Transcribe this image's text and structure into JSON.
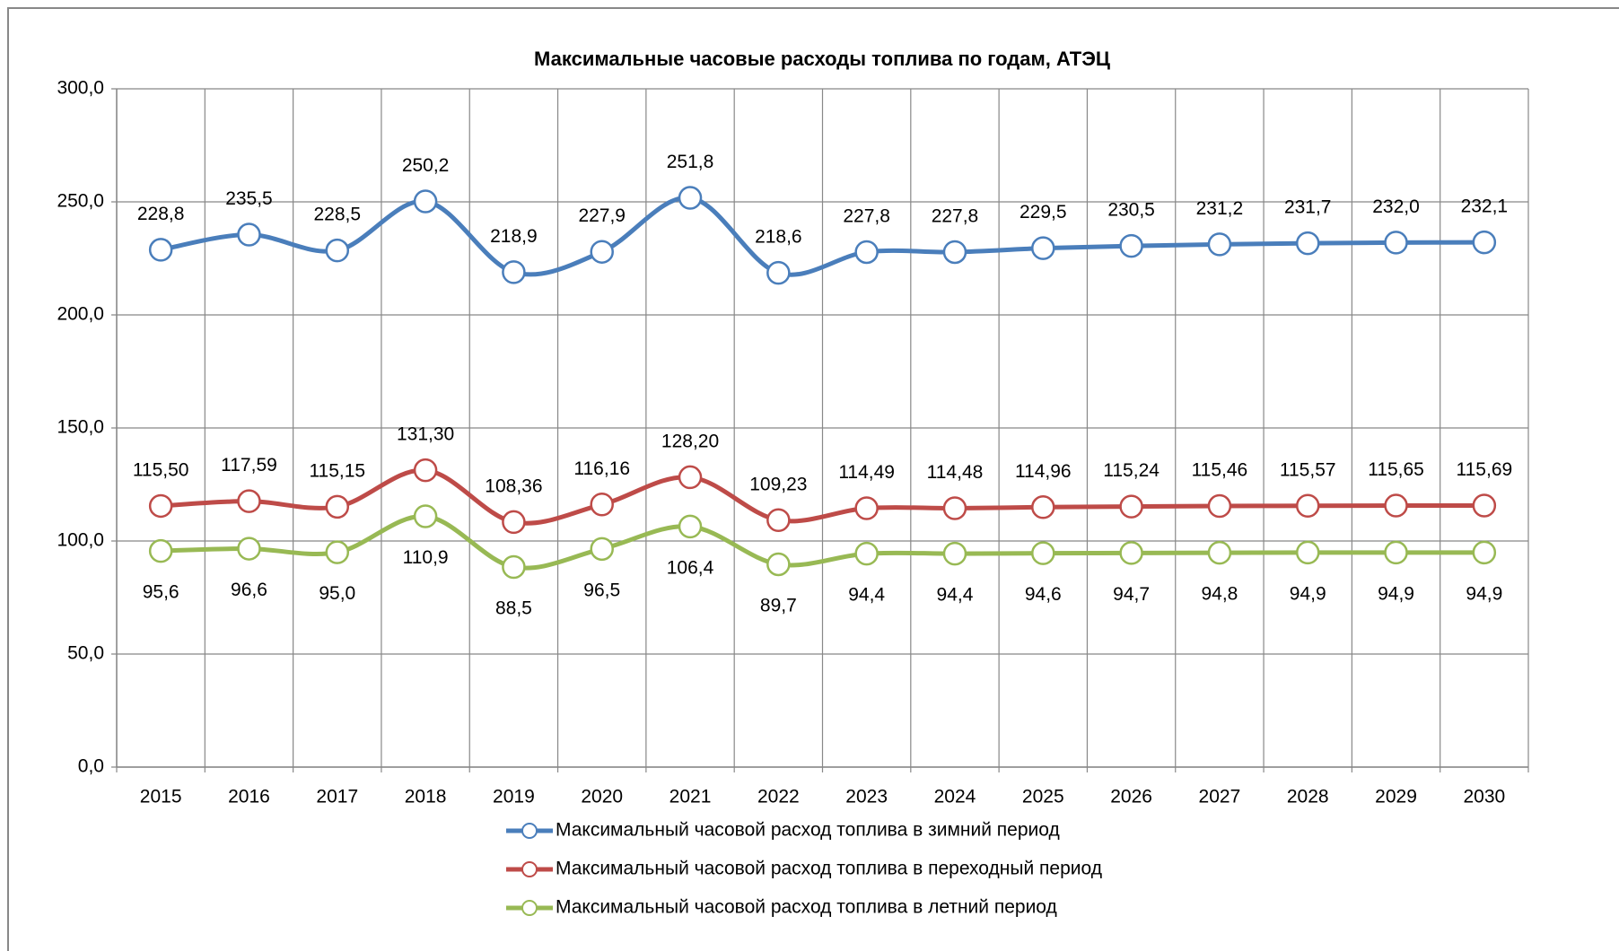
{
  "chart_data": {
    "type": "line",
    "title": "Максимальные часовые расходы топлива по годам, АТЭЦ",
    "categories": [
      "2015",
      "2016",
      "2017",
      "2018",
      "2019",
      "2020",
      "2021",
      "2022",
      "2023",
      "2024",
      "2025",
      "2026",
      "2027",
      "2028",
      "2029",
      "2030"
    ],
    "ylim": [
      0,
      300
    ],
    "yticks": [
      {
        "value": 0,
        "label": "0,0"
      },
      {
        "value": 50,
        "label": "50,0"
      },
      {
        "value": 100,
        "label": "100,0"
      },
      {
        "value": 150,
        "label": "150,0"
      },
      {
        "value": 200,
        "label": "200,0"
      },
      {
        "value": 250,
        "label": "250,0"
      },
      {
        "value": 300,
        "label": "300,0"
      }
    ],
    "grid": true,
    "legend": "bottom",
    "series": [
      {
        "name": "Максимальный часовой расход топлива в зимний период",
        "color": "#4a7ebb",
        "values": [
          228.8,
          235.5,
          228.5,
          250.2,
          218.9,
          227.9,
          251.8,
          218.6,
          227.8,
          227.8,
          229.5,
          230.5,
          231.2,
          231.7,
          232.0,
          232.1
        ],
        "value_labels": [
          "228,8",
          "235,5",
          "228,5",
          "250,2",
          "218,9",
          "227,9",
          "251,8",
          "218,6",
          "227,8",
          "227,8",
          "229,5",
          "230,5",
          "231,2",
          "231,7",
          "232,0",
          "232,1"
        ]
      },
      {
        "name": "Максимальный часовой расход топлива в переходный период",
        "color": "#be4b48",
        "values": [
          115.5,
          117.59,
          115.15,
          131.3,
          108.36,
          116.16,
          128.2,
          109.23,
          114.49,
          114.48,
          114.96,
          115.24,
          115.46,
          115.57,
          115.65,
          115.69
        ],
        "value_labels": [
          "115,50",
          "117,59",
          "115,15",
          "131,30",
          "108,36",
          "116,16",
          "128,20",
          "109,23",
          "114,49",
          "114,48",
          "114,96",
          "115,24",
          "115,46",
          "115,57",
          "115,65",
          "115,69"
        ]
      },
      {
        "name": "Максимальный часовой расход топлива в летний период",
        "color": "#98b954",
        "values": [
          95.6,
          96.6,
          95.0,
          110.9,
          88.5,
          96.5,
          106.4,
          89.7,
          94.4,
          94.4,
          94.6,
          94.7,
          94.8,
          94.9,
          94.9,
          94.9
        ],
        "value_labels": [
          "95,6",
          "96,6",
          "95,0",
          "110,9",
          "88,5",
          "96,5",
          "106,4",
          "89,7",
          "94,4",
          "94,4",
          "94,6",
          "94,7",
          "94,8",
          "94,9",
          "94,9",
          "94,9"
        ]
      }
    ]
  }
}
